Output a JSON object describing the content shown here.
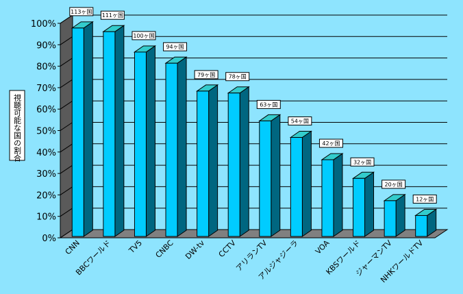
{
  "chart_data": {
    "type": "bar",
    "ylabel": "視聴可能な国の割合",
    "xlabel": "",
    "title": "",
    "ylim": [
      0,
      100
    ],
    "yticks": [
      "0%",
      "10%",
      "20%",
      "30%",
      "40%",
      "50%",
      "60%",
      "70%",
      "80%",
      "90%",
      "100%"
    ],
    "categories": [
      "CNN",
      "BBCワールド",
      "TV5",
      "CNBC",
      "DW-tv",
      "CCTV",
      "アリランTV",
      "アルジャジーラ",
      "VOA",
      "KBSワールド",
      "ジャーマンTV",
      "NHKワールドTV"
    ],
    "values": [
      97.8,
      96.1,
      86.6,
      81.4,
      68.4,
      67.5,
      54.5,
      46.8,
      36.4,
      27.7,
      17.3,
      10.4
    ],
    "data_labels": [
      "113ヶ国",
      "111ヶ国",
      "100ヶ国",
      "94ヶ国",
      "79ヶ国",
      "78ヶ国",
      "63ヶ国",
      "54ヶ国",
      "42ヶ国",
      "32ヶ国",
      "20ヶ国",
      "12ヶ国"
    ],
    "grid": true,
    "colors": {
      "background": "#8EE4FE",
      "floor": "#808080",
      "floor_dark": "#5A5A5A",
      "bar_front": "#00CCFF",
      "bar_top": "#33CCCC",
      "bar_side": "#006680",
      "label_box": "#FFFFFF"
    }
  }
}
